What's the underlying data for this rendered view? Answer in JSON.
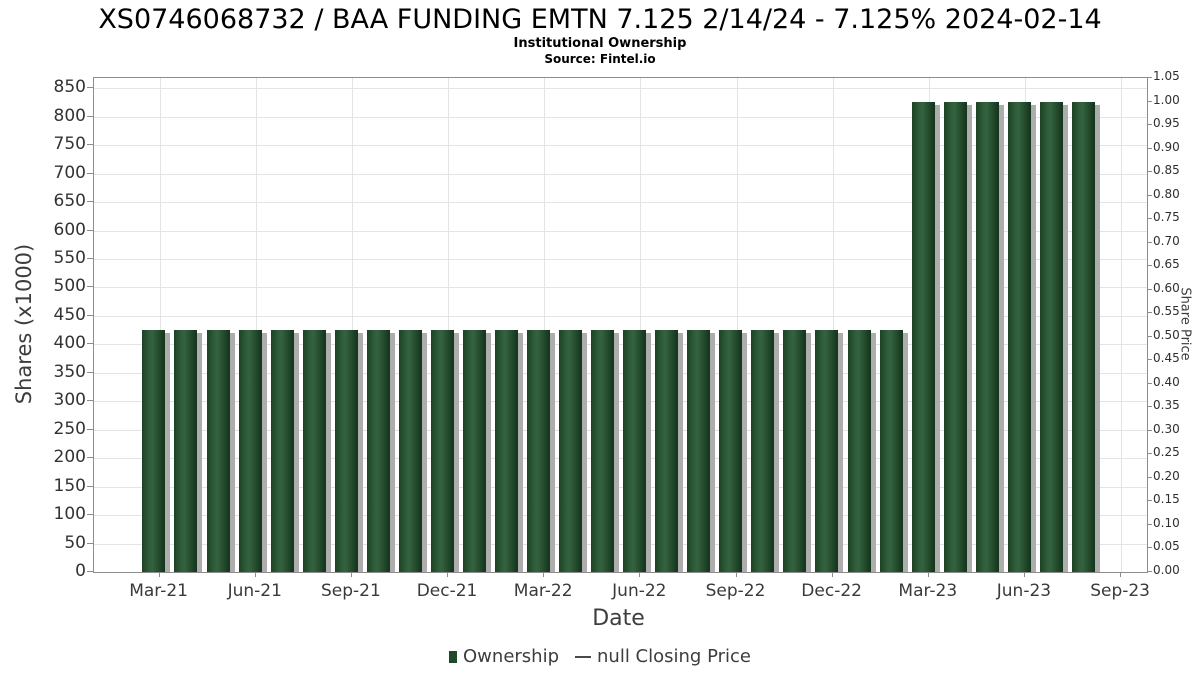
{
  "chart_data": {
    "type": "bar",
    "title": "XS0746068732 / BAA FUNDING EMTN 7.125 2/14/24 - 7.125% 2024-02-14",
    "subtitle": "Institutional Ownership",
    "source": "Source: Fintel.io",
    "xlabel": "Date",
    "ylabel_left": "Shares (x1000)",
    "ylabel_right": "Share Price",
    "categories": [
      "Mar-21",
      "Apr-21",
      "May-21",
      "Jun-21",
      "Jul-21",
      "Aug-21",
      "Sep-21",
      "Oct-21",
      "Nov-21",
      "Dec-21",
      "Jan-22",
      "Feb-22",
      "Mar-22",
      "Apr-22",
      "May-22",
      "Jun-22",
      "Jul-22",
      "Aug-22",
      "Sep-22",
      "Oct-22",
      "Nov-22",
      "Dec-22",
      "Jan-23",
      "Feb-23",
      "Mar-23",
      "Apr-23",
      "May-23",
      "Jun-23",
      "Jul-23",
      "Aug-23"
    ],
    "values": [
      425,
      425,
      425,
      425,
      425,
      425,
      425,
      425,
      425,
      425,
      425,
      425,
      425,
      425,
      425,
      425,
      425,
      425,
      425,
      425,
      425,
      425,
      425,
      425,
      825,
      825,
      825,
      825,
      825,
      825
    ],
    "x_tick_labels": [
      "Mar-21",
      "Jun-21",
      "Sep-21",
      "Dec-21",
      "Mar-22",
      "Jun-22",
      "Sep-22",
      "Dec-22",
      "Mar-23",
      "Jun-23",
      "Sep-23"
    ],
    "left_axis": {
      "ticks": [
        0,
        50,
        100,
        150,
        200,
        250,
        300,
        350,
        400,
        450,
        500,
        550,
        600,
        650,
        700,
        750,
        800,
        850
      ],
      "min": 0,
      "max": 868
    },
    "right_axis": {
      "ticks": [
        0.0,
        0.05,
        0.1,
        0.15,
        0.2,
        0.25,
        0.3,
        0.35,
        0.4,
        0.45,
        0.5,
        0.55,
        0.6,
        0.65,
        0.7,
        0.75,
        0.8,
        0.85,
        0.9,
        0.95,
        1.0,
        1.05
      ],
      "min": 0,
      "max": 1.05
    },
    "grid": true,
    "legend_position": "bottom",
    "legend": [
      {
        "label": "Ownership",
        "marker": "square",
        "color": "#1e4a29"
      },
      {
        "label": "null Closing Price",
        "marker": "dash",
        "color": "#4a4a4a"
      }
    ],
    "colors": {
      "bar": "#2a5434",
      "bar_shadow": "#adadad",
      "grid": "#e4e4e4",
      "axis": "#8c8c8c"
    }
  }
}
